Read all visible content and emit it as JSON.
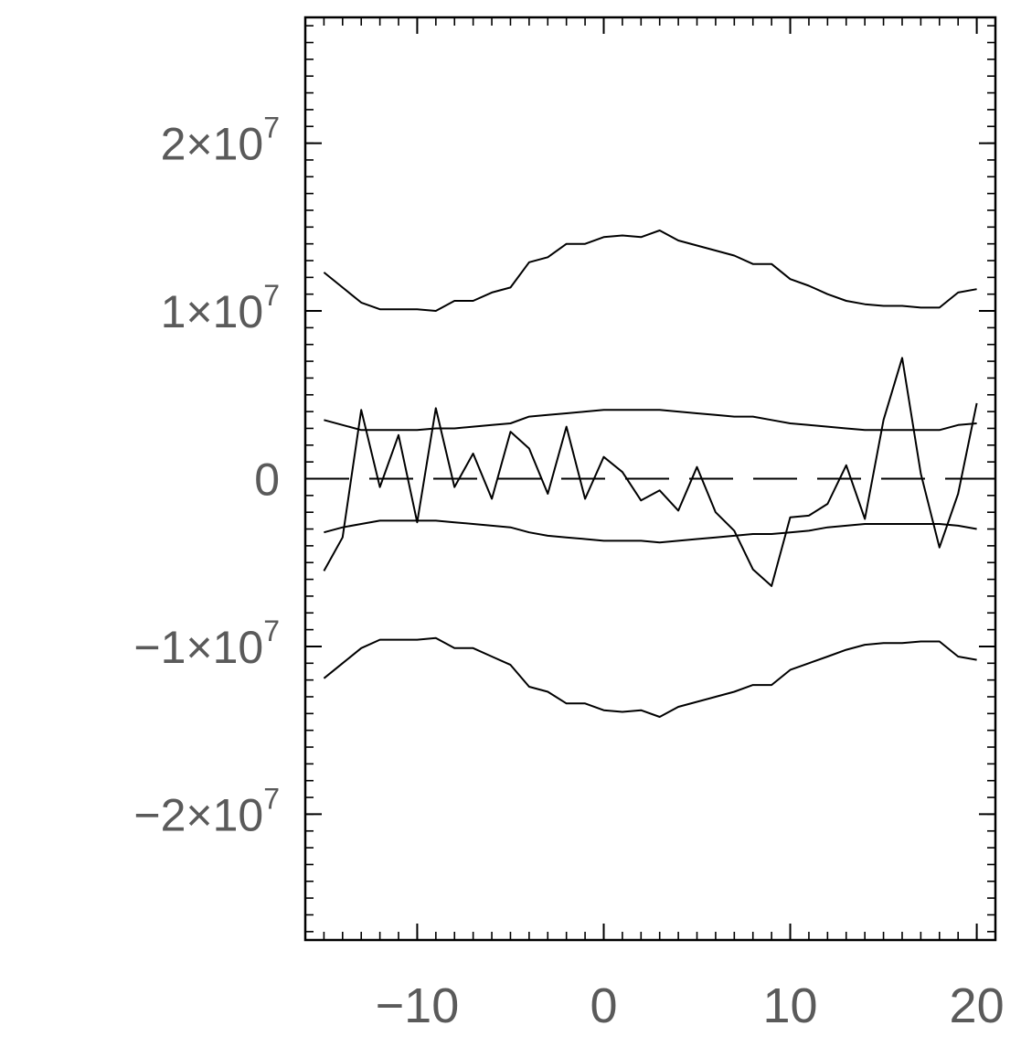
{
  "chart_data": {
    "type": "line",
    "title": "",
    "xlabel": "",
    "ylabel": "",
    "xlim": [
      -16,
      21
    ],
    "ylim": [
      -27500000,
      27500000
    ],
    "x_ticks": [
      {
        "value": -10,
        "label": "−10"
      },
      {
        "value": 0,
        "label": "0"
      },
      {
        "value": 10,
        "label": "10"
      },
      {
        "value": 20,
        "label": "20"
      }
    ],
    "y_ticks": [
      {
        "value": 20000000,
        "mantissa": "2×10",
        "exponent": "7"
      },
      {
        "value": 10000000,
        "mantissa": "1×10",
        "exponent": "7"
      },
      {
        "value": 0,
        "mantissa": "0",
        "exponent": ""
      },
      {
        "value": -10000000,
        "mantissa": "−1×10",
        "exponent": "7"
      },
      {
        "value": -20000000,
        "mantissa": "−2×10",
        "exponent": "7"
      }
    ],
    "x_minor_step": 1,
    "y_minor_step": 1000000,
    "x": [
      -15,
      -14,
      -13,
      -12,
      -11,
      -10,
      -9,
      -8,
      -7,
      -6,
      -5,
      -4,
      -3,
      -2,
      -1,
      0,
      1,
      2,
      3,
      4,
      5,
      6,
      7,
      8,
      9,
      10,
      11,
      12,
      13,
      14,
      15,
      16,
      17,
      18,
      19,
      20
    ],
    "series": [
      {
        "style": "solid",
        "values": [
          12300000,
          11400000,
          10500000,
          10100000,
          10100000,
          10100000,
          10000000,
          10600000,
          10600000,
          11100000,
          11400000,
          12900000,
          13200000,
          14000000,
          14000000,
          14400000,
          14500000,
          14400000,
          14800000,
          14200000,
          13900000,
          13600000,
          13300000,
          12800000,
          12800000,
          11900000,
          11500000,
          11000000,
          10600000,
          10400000,
          10300000,
          10300000,
          10200000,
          10200000,
          11100000,
          11300000
        ]
      },
      {
        "style": "solid",
        "values": [
          3500000,
          3200000,
          2900000,
          2900000,
          2900000,
          2900000,
          3000000,
          3000000,
          3100000,
          3200000,
          3300000,
          3700000,
          3800000,
          3900000,
          4000000,
          4100000,
          4100000,
          4100000,
          4100000,
          4000000,
          3900000,
          3800000,
          3700000,
          3700000,
          3500000,
          3300000,
          3200000,
          3100000,
          3000000,
          2900000,
          2900000,
          2900000,
          2900000,
          2900000,
          3200000,
          3300000
        ]
      },
      {
        "style": "solid",
        "values": [
          -5500000,
          -3500000,
          4100000,
          -500000,
          2600000,
          -2600000,
          4200000,
          -500000,
          1500000,
          -1200000,
          2800000,
          1800000,
          -900000,
          3100000,
          -1200000,
          1300000,
          400000,
          -1300000,
          -700000,
          -1900000,
          700000,
          -2000000,
          -3100000,
          -5400000,
          -6400000,
          -2300000,
          -2200000,
          -1500000,
          800000,
          -2400000,
          3500000,
          7200000,
          300000,
          -4100000,
          -900000,
          4500000
        ]
      },
      {
        "style": "dashed",
        "values": [
          0,
          0,
          0,
          0,
          0,
          0,
          0,
          0,
          0,
          0,
          0,
          0,
          0,
          0,
          0,
          0,
          0,
          0,
          0,
          0,
          0,
          0,
          0,
          0,
          0,
          0,
          0,
          0,
          0,
          0,
          0,
          0,
          0,
          0,
          0,
          0
        ]
      },
      {
        "style": "solid",
        "values": [
          -3200000,
          -2900000,
          -2700000,
          -2500000,
          -2500000,
          -2500000,
          -2500000,
          -2600000,
          -2700000,
          -2800000,
          -2900000,
          -3200000,
          -3400000,
          -3500000,
          -3600000,
          -3700000,
          -3700000,
          -3700000,
          -3800000,
          -3700000,
          -3600000,
          -3500000,
          -3400000,
          -3300000,
          -3300000,
          -3200000,
          -3100000,
          -2900000,
          -2800000,
          -2700000,
          -2700000,
          -2700000,
          -2700000,
          -2700000,
          -2800000,
          -3000000
        ]
      },
      {
        "style": "solid",
        "values": [
          -11900000,
          -11000000,
          -10100000,
          -9600000,
          -9600000,
          -9600000,
          -9500000,
          -10100000,
          -10100000,
          -10600000,
          -11100000,
          -12400000,
          -12700000,
          -13400000,
          -13400000,
          -13800000,
          -13900000,
          -13800000,
          -14200000,
          -13600000,
          -13300000,
          -13000000,
          -12700000,
          -12300000,
          -12300000,
          -11400000,
          -11000000,
          -10600000,
          -10200000,
          -9900000,
          -9800000,
          -9800000,
          -9700000,
          -9700000,
          -10600000,
          -10800000
        ]
      }
    ]
  }
}
